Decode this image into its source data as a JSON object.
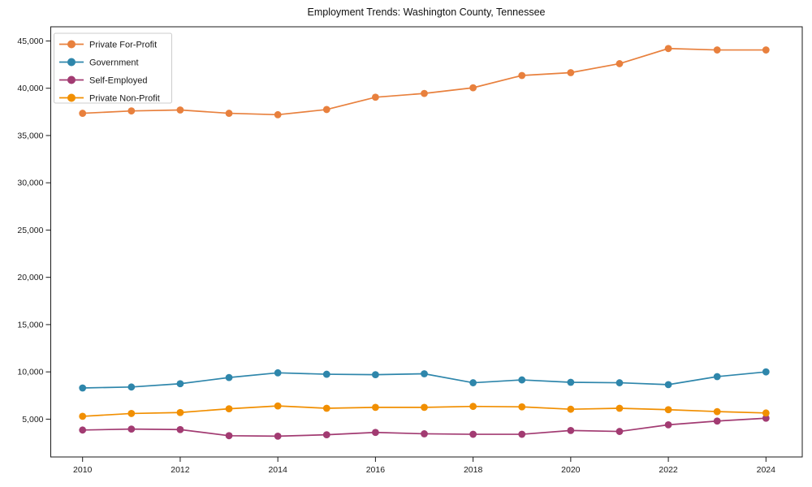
{
  "chart_data": {
    "type": "line",
    "title": "Employment Trends: Washington County, Tennessee",
    "xlabel": "",
    "ylabel": "",
    "x": [
      2010,
      2011,
      2012,
      2013,
      2014,
      2015,
      2016,
      2017,
      2018,
      2019,
      2020,
      2021,
      2022,
      2023,
      2024
    ],
    "series": [
      {
        "name": "Private For-Profit",
        "color": "#E8803D",
        "values": [
          37350,
          37600,
          37700,
          37350,
          37200,
          37750,
          39050,
          39450,
          40050,
          41350,
          41650,
          42600,
          44200,
          44050,
          44050
        ]
      },
      {
        "name": "Government",
        "color": "#2E86AB",
        "values": [
          8300,
          8400,
          8750,
          9400,
          9900,
          9750,
          9700,
          9800,
          8850,
          9150,
          8900,
          8850,
          8650,
          9500,
          10000
        ]
      },
      {
        "name": "Self-Employed",
        "color": "#A23B72",
        "values": [
          3850,
          3950,
          3900,
          3250,
          3200,
          3350,
          3600,
          3450,
          3400,
          3400,
          3800,
          3700,
          4400,
          4800,
          5100
        ]
      },
      {
        "name": "Private Non-Profit",
        "color": "#F18F01",
        "values": [
          5300,
          5600,
          5700,
          6100,
          6400,
          6150,
          6250,
          6250,
          6350,
          6300,
          6050,
          6150,
          6000,
          5800,
          5650
        ]
      }
    ],
    "xticks": [
      2010,
      2012,
      2014,
      2016,
      2018,
      2020,
      2022,
      2024
    ],
    "yticks": [
      5000,
      10000,
      15000,
      20000,
      25000,
      30000,
      35000,
      40000,
      45000
    ],
    "ytick_labels": [
      "5,000",
      "10,000",
      "15,000",
      "20,000",
      "25,000",
      "30,000",
      "35,000",
      "40,000",
      "45,000"
    ],
    "ylim": [
      1000,
      46500
    ],
    "grid": false,
    "marker": "circle",
    "legend_position": "upper-left",
    "axis_color": "#1a1a1a",
    "legend_border_color": "#cccccc",
    "legend_background": "#ffffff"
  }
}
